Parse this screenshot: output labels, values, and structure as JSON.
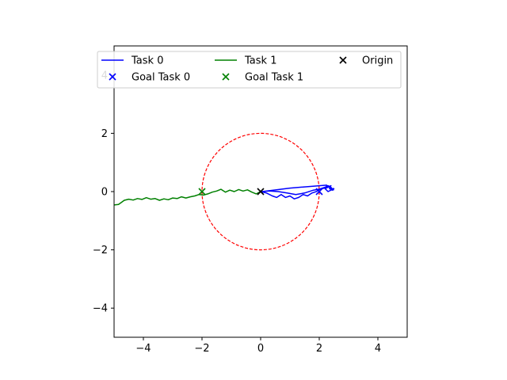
{
  "chart_data": {
    "type": "line",
    "xlim": [
      -5,
      5
    ],
    "ylim": [
      -5,
      5
    ],
    "xticks": [
      -4,
      -2,
      0,
      2,
      4
    ],
    "yticks": [
      -4,
      -2,
      0,
      2,
      4
    ],
    "xtick_labels": [
      "−4",
      "−2",
      "0",
      "2",
      "4"
    ],
    "ytick_labels": [
      "−4",
      "−2",
      "0",
      "2",
      "4"
    ],
    "grid": false,
    "legend": {
      "placement": "top",
      "columns": 3,
      "entries": [
        "Task 0",
        "Task 1",
        "Origin",
        "Goal Task 0",
        "Goal Task 1"
      ]
    },
    "circle": {
      "center": [
        0,
        0
      ],
      "radius": 2,
      "color": "#ff0000",
      "style": "dashed"
    },
    "series": [
      {
        "name": "Task 0",
        "kind": "line",
        "color": "#0000ff",
        "points": [
          [
            0,
            0
          ],
          [
            0.2,
            -0.05
          ],
          [
            0.4,
            -0.15
          ],
          [
            0.55,
            -0.2
          ],
          [
            0.7,
            -0.1
          ],
          [
            0.85,
            -0.2
          ],
          [
            1.0,
            -0.15
          ],
          [
            1.15,
            -0.25
          ],
          [
            1.3,
            -0.2
          ],
          [
            1.45,
            -0.1
          ],
          [
            1.6,
            -0.15
          ],
          [
            1.75,
            -0.05
          ],
          [
            1.9,
            0.0
          ],
          [
            2.05,
            0.1
          ],
          [
            2.2,
            0.15
          ],
          [
            2.3,
            0.2
          ],
          [
            2.4,
            0.15
          ],
          [
            2.45,
            0.05
          ],
          [
            2.35,
            0.1
          ],
          [
            2.5,
            0.1
          ],
          [
            2.3,
            0.0
          ],
          [
            2.2,
            0.1
          ],
          [
            2.4,
            0.2
          ],
          [
            2.3,
            0.15
          ],
          [
            2.1,
            0.1
          ],
          [
            1.8,
            0.05
          ],
          [
            1.5,
            -0.05
          ],
          [
            1.2,
            -0.1
          ],
          [
            0.9,
            -0.05
          ],
          [
            0.6,
            0.0
          ],
          [
            0.3,
            0.02
          ],
          [
            0.05,
            0.0
          ],
          [
            1.0,
            0.12
          ],
          [
            2.0,
            0.2
          ],
          [
            2.25,
            0.22
          ],
          [
            2.4,
            0.1
          ],
          [
            2.5,
            0.05
          ]
        ]
      },
      {
        "name": "Task 1",
        "kind": "line",
        "color": "#008000",
        "points": [
          [
            0,
            0
          ],
          [
            -0.15,
            -0.08
          ],
          [
            -0.3,
            -0.02
          ],
          [
            -0.45,
            0.06
          ],
          [
            -0.6,
            0.02
          ],
          [
            -0.75,
            0.07
          ],
          [
            -0.9,
            0.0
          ],
          [
            -1.05,
            0.05
          ],
          [
            -1.2,
            -0.02
          ],
          [
            -1.35,
            0.08
          ],
          [
            -1.5,
            0.02
          ],
          [
            -1.65,
            -0.02
          ],
          [
            -1.8,
            -0.08
          ],
          [
            -1.95,
            -0.12
          ],
          [
            -2.1,
            -0.1
          ],
          [
            -2.25,
            -0.15
          ],
          [
            -2.4,
            -0.18
          ],
          [
            -2.55,
            -0.22
          ],
          [
            -2.7,
            -0.18
          ],
          [
            -2.85,
            -0.24
          ],
          [
            -3.0,
            -0.22
          ],
          [
            -3.15,
            -0.28
          ],
          [
            -3.3,
            -0.25
          ],
          [
            -3.45,
            -0.3
          ],
          [
            -3.6,
            -0.24
          ],
          [
            -3.75,
            -0.26
          ],
          [
            -3.9,
            -0.21
          ],
          [
            -4.05,
            -0.27
          ],
          [
            -4.2,
            -0.24
          ],
          [
            -4.35,
            -0.29
          ],
          [
            -4.5,
            -0.26
          ],
          [
            -4.65,
            -0.3
          ],
          [
            -4.75,
            -0.37
          ],
          [
            -4.85,
            -0.44
          ],
          [
            -5.0,
            -0.46
          ]
        ]
      },
      {
        "name": "Goal Task 0",
        "kind": "marker",
        "color": "#0000ff",
        "points": [
          [
            2,
            0
          ]
        ]
      },
      {
        "name": "Goal Task 1",
        "kind": "marker",
        "color": "#008000",
        "points": [
          [
            -2,
            0
          ]
        ]
      },
      {
        "name": "Origin",
        "kind": "marker",
        "color": "#000000",
        "points": [
          [
            0,
            0
          ]
        ]
      }
    ]
  }
}
